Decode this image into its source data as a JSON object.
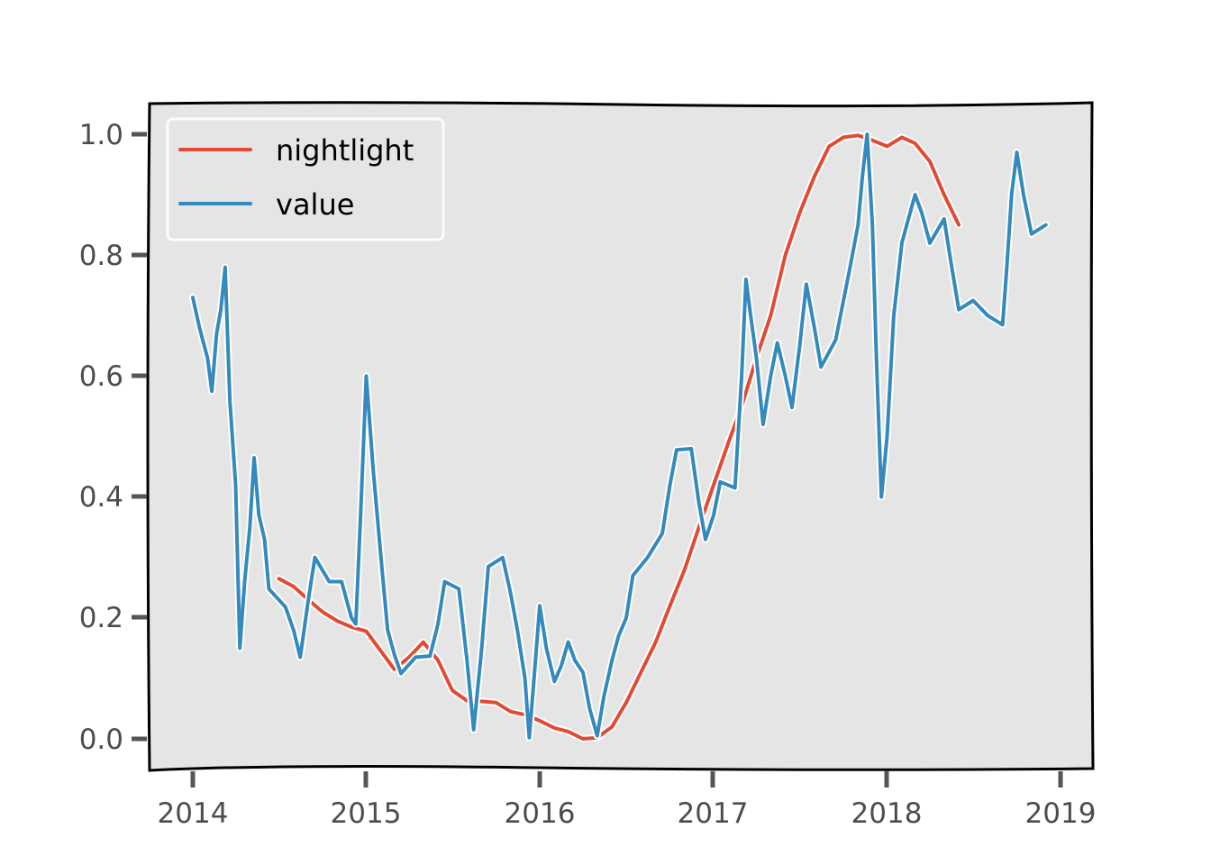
{
  "colors": {
    "background": "#ffffff",
    "plot_background": "#e5e5e5",
    "frame": "#000000",
    "tick": "#555555",
    "nightlight": "#e24a33",
    "value": "#348abd"
  },
  "chart_data": {
    "type": "line",
    "title": "",
    "xlabel": "",
    "ylabel": "",
    "xlim": [
      "2013-10-19",
      "2019-02-15"
    ],
    "ylim": [
      -0.05,
      1.05
    ],
    "x_ticks": [
      "2014",
      "2015",
      "2016",
      "2017",
      "2018",
      "2019"
    ],
    "y_ticks": [
      "0.0",
      "0.2",
      "0.4",
      "0.6",
      "0.8",
      "1.0"
    ],
    "grid": false,
    "legend": {
      "position": "upper left",
      "entries": [
        "nightlight",
        "value"
      ]
    },
    "series": [
      {
        "name": "nightlight",
        "color": "#e24a33",
        "points": [
          [
            "2014-07-01",
            0.265
          ],
          [
            "2014-08-01",
            0.252
          ],
          [
            "2014-09-01",
            0.23
          ],
          [
            "2014-10-01",
            0.21
          ],
          [
            "2014-11-01",
            0.195
          ],
          [
            "2014-12-01",
            0.185
          ],
          [
            "2015-01-01",
            0.178
          ],
          [
            "2015-02-01",
            0.145
          ],
          [
            "2015-03-01",
            0.115
          ],
          [
            "2015-04-01",
            0.135
          ],
          [
            "2015-05-01",
            0.16
          ],
          [
            "2015-06-01",
            0.13
          ],
          [
            "2015-07-01",
            0.08
          ],
          [
            "2015-08-01",
            0.063
          ],
          [
            "2015-09-01",
            0.062
          ],
          [
            "2015-10-01",
            0.06
          ],
          [
            "2015-11-01",
            0.045
          ],
          [
            "2015-12-01",
            0.04
          ],
          [
            "2016-01-01",
            0.03
          ],
          [
            "2016-02-01",
            0.018
          ],
          [
            "2016-03-01",
            0.012
          ],
          [
            "2016-04-01",
            0.0
          ],
          [
            "2016-05-01",
            0.002
          ],
          [
            "2016-06-01",
            0.02
          ],
          [
            "2016-07-01",
            0.06
          ],
          [
            "2016-08-01",
            0.11
          ],
          [
            "2016-09-01",
            0.16
          ],
          [
            "2016-10-01",
            0.22
          ],
          [
            "2016-11-01",
            0.28
          ],
          [
            "2016-12-01",
            0.35
          ],
          [
            "2017-01-01",
            0.42
          ],
          [
            "2017-02-01",
            0.49
          ],
          [
            "2017-03-01",
            0.55
          ],
          [
            "2017-04-01",
            0.63
          ],
          [
            "2017-05-01",
            0.7
          ],
          [
            "2017-06-01",
            0.8
          ],
          [
            "2017-07-01",
            0.87
          ],
          [
            "2017-08-01",
            0.93
          ],
          [
            "2017-09-01",
            0.98
          ],
          [
            "2017-10-01",
            0.995
          ],
          [
            "2017-11-01",
            0.998
          ],
          [
            "2017-12-01",
            0.99
          ],
          [
            "2018-01-01",
            0.98
          ],
          [
            "2018-02-01",
            0.995
          ],
          [
            "2018-03-01",
            0.985
          ],
          [
            "2018-04-01",
            0.955
          ],
          [
            "2018-05-01",
            0.9
          ],
          [
            "2018-06-01",
            0.85
          ]
        ]
      },
      {
        "name": "value",
        "color": "#348abd",
        "points": [
          [
            "2014-01-01",
            0.73
          ],
          [
            "2014-01-15",
            0.68
          ],
          [
            "2014-02-01",
            0.63
          ],
          [
            "2014-02-10",
            0.575
          ],
          [
            "2014-02-20",
            0.67
          ],
          [
            "2014-03-01",
            0.71
          ],
          [
            "2014-03-10",
            0.78
          ],
          [
            "2014-03-20",
            0.56
          ],
          [
            "2014-04-01",
            0.42
          ],
          [
            "2014-04-10",
            0.15
          ],
          [
            "2014-04-20",
            0.26
          ],
          [
            "2014-05-01",
            0.35
          ],
          [
            "2014-05-10",
            0.465
          ],
          [
            "2014-05-20",
            0.37
          ],
          [
            "2014-06-01",
            0.33
          ],
          [
            "2014-06-10",
            0.248
          ],
          [
            "2014-07-01",
            0.23
          ],
          [
            "2014-07-15",
            0.218
          ],
          [
            "2014-08-01",
            0.18
          ],
          [
            "2014-08-15",
            0.135
          ],
          [
            "2014-09-01",
            0.23
          ],
          [
            "2014-09-15",
            0.3
          ],
          [
            "2014-10-15",
            0.26
          ],
          [
            "2014-11-10",
            0.26
          ],
          [
            "2014-12-01",
            0.2
          ],
          [
            "2014-12-10",
            0.19
          ],
          [
            "2014-12-20",
            0.37
          ],
          [
            "2015-01-01",
            0.6
          ],
          [
            "2015-01-15",
            0.45
          ],
          [
            "2015-02-01",
            0.3
          ],
          [
            "2015-02-15",
            0.18
          ],
          [
            "2015-03-01",
            0.14
          ],
          [
            "2015-03-15",
            0.108
          ],
          [
            "2015-04-15",
            0.135
          ],
          [
            "2015-05-15",
            0.137
          ],
          [
            "2015-06-01",
            0.19
          ],
          [
            "2015-06-15",
            0.26
          ],
          [
            "2015-07-15",
            0.248
          ],
          [
            "2015-08-01",
            0.13
          ],
          [
            "2015-08-15",
            0.015
          ],
          [
            "2015-09-01",
            0.15
          ],
          [
            "2015-09-15",
            0.285
          ],
          [
            "2015-10-15",
            0.3
          ],
          [
            "2015-11-01",
            0.24
          ],
          [
            "2015-11-15",
            0.18
          ],
          [
            "2015-12-01",
            0.1
          ],
          [
            "2015-12-10",
            0.002
          ],
          [
            "2015-12-20",
            0.1
          ],
          [
            "2016-01-01",
            0.22
          ],
          [
            "2016-01-15",
            0.15
          ],
          [
            "2016-02-01",
            0.095
          ],
          [
            "2016-02-15",
            0.12
          ],
          [
            "2016-03-01",
            0.16
          ],
          [
            "2016-03-15",
            0.13
          ],
          [
            "2016-04-01",
            0.11
          ],
          [
            "2016-04-15",
            0.05
          ],
          [
            "2016-05-01",
            0.005
          ],
          [
            "2016-05-15",
            0.07
          ],
          [
            "2016-06-01",
            0.13
          ],
          [
            "2016-06-15",
            0.17
          ],
          [
            "2016-07-01",
            0.2
          ],
          [
            "2016-07-15",
            0.27
          ],
          [
            "2016-08-15",
            0.3
          ],
          [
            "2016-09-15",
            0.34
          ],
          [
            "2016-10-01",
            0.42
          ],
          [
            "2016-10-15",
            0.478
          ],
          [
            "2016-11-15",
            0.48
          ],
          [
            "2016-12-01",
            0.39
          ],
          [
            "2016-12-15",
            0.33
          ],
          [
            "2017-01-01",
            0.37
          ],
          [
            "2017-01-15",
            0.425
          ],
          [
            "2017-02-15",
            0.415
          ],
          [
            "2017-03-01",
            0.6
          ],
          [
            "2017-03-10",
            0.76
          ],
          [
            "2017-03-20",
            0.7
          ],
          [
            "2017-04-01",
            0.63
          ],
          [
            "2017-04-15",
            0.52
          ],
          [
            "2017-05-01",
            0.6
          ],
          [
            "2017-05-15",
            0.655
          ],
          [
            "2017-06-01",
            0.6
          ],
          [
            "2017-06-15",
            0.548
          ],
          [
            "2017-07-01",
            0.65
          ],
          [
            "2017-07-15",
            0.752
          ],
          [
            "2017-08-01",
            0.68
          ],
          [
            "2017-08-15",
            0.615
          ],
          [
            "2017-09-15",
            0.66
          ],
          [
            "2017-10-15",
            0.78
          ],
          [
            "2017-11-01",
            0.85
          ],
          [
            "2017-11-10",
            0.93
          ],
          [
            "2017-11-20",
            1.0
          ],
          [
            "2017-12-01",
            0.85
          ],
          [
            "2017-12-10",
            0.62
          ],
          [
            "2017-12-20",
            0.4
          ],
          [
            "2018-01-01",
            0.5
          ],
          [
            "2018-01-15",
            0.7
          ],
          [
            "2018-02-01",
            0.82
          ],
          [
            "2018-02-15",
            0.86
          ],
          [
            "2018-03-01",
            0.9
          ],
          [
            "2018-03-15",
            0.87
          ],
          [
            "2018-04-01",
            0.82
          ],
          [
            "2018-05-01",
            0.86
          ],
          [
            "2018-05-15",
            0.79
          ],
          [
            "2018-06-01",
            0.71
          ],
          [
            "2018-07-01",
            0.725
          ],
          [
            "2018-08-01",
            0.7
          ],
          [
            "2018-09-01",
            0.685
          ],
          [
            "2018-09-10",
            0.78
          ],
          [
            "2018-09-20",
            0.9
          ],
          [
            "2018-10-01",
            0.97
          ],
          [
            "2018-10-15",
            0.9
          ],
          [
            "2018-11-01",
            0.835
          ],
          [
            "2018-12-01",
            0.85
          ]
        ]
      }
    ]
  }
}
